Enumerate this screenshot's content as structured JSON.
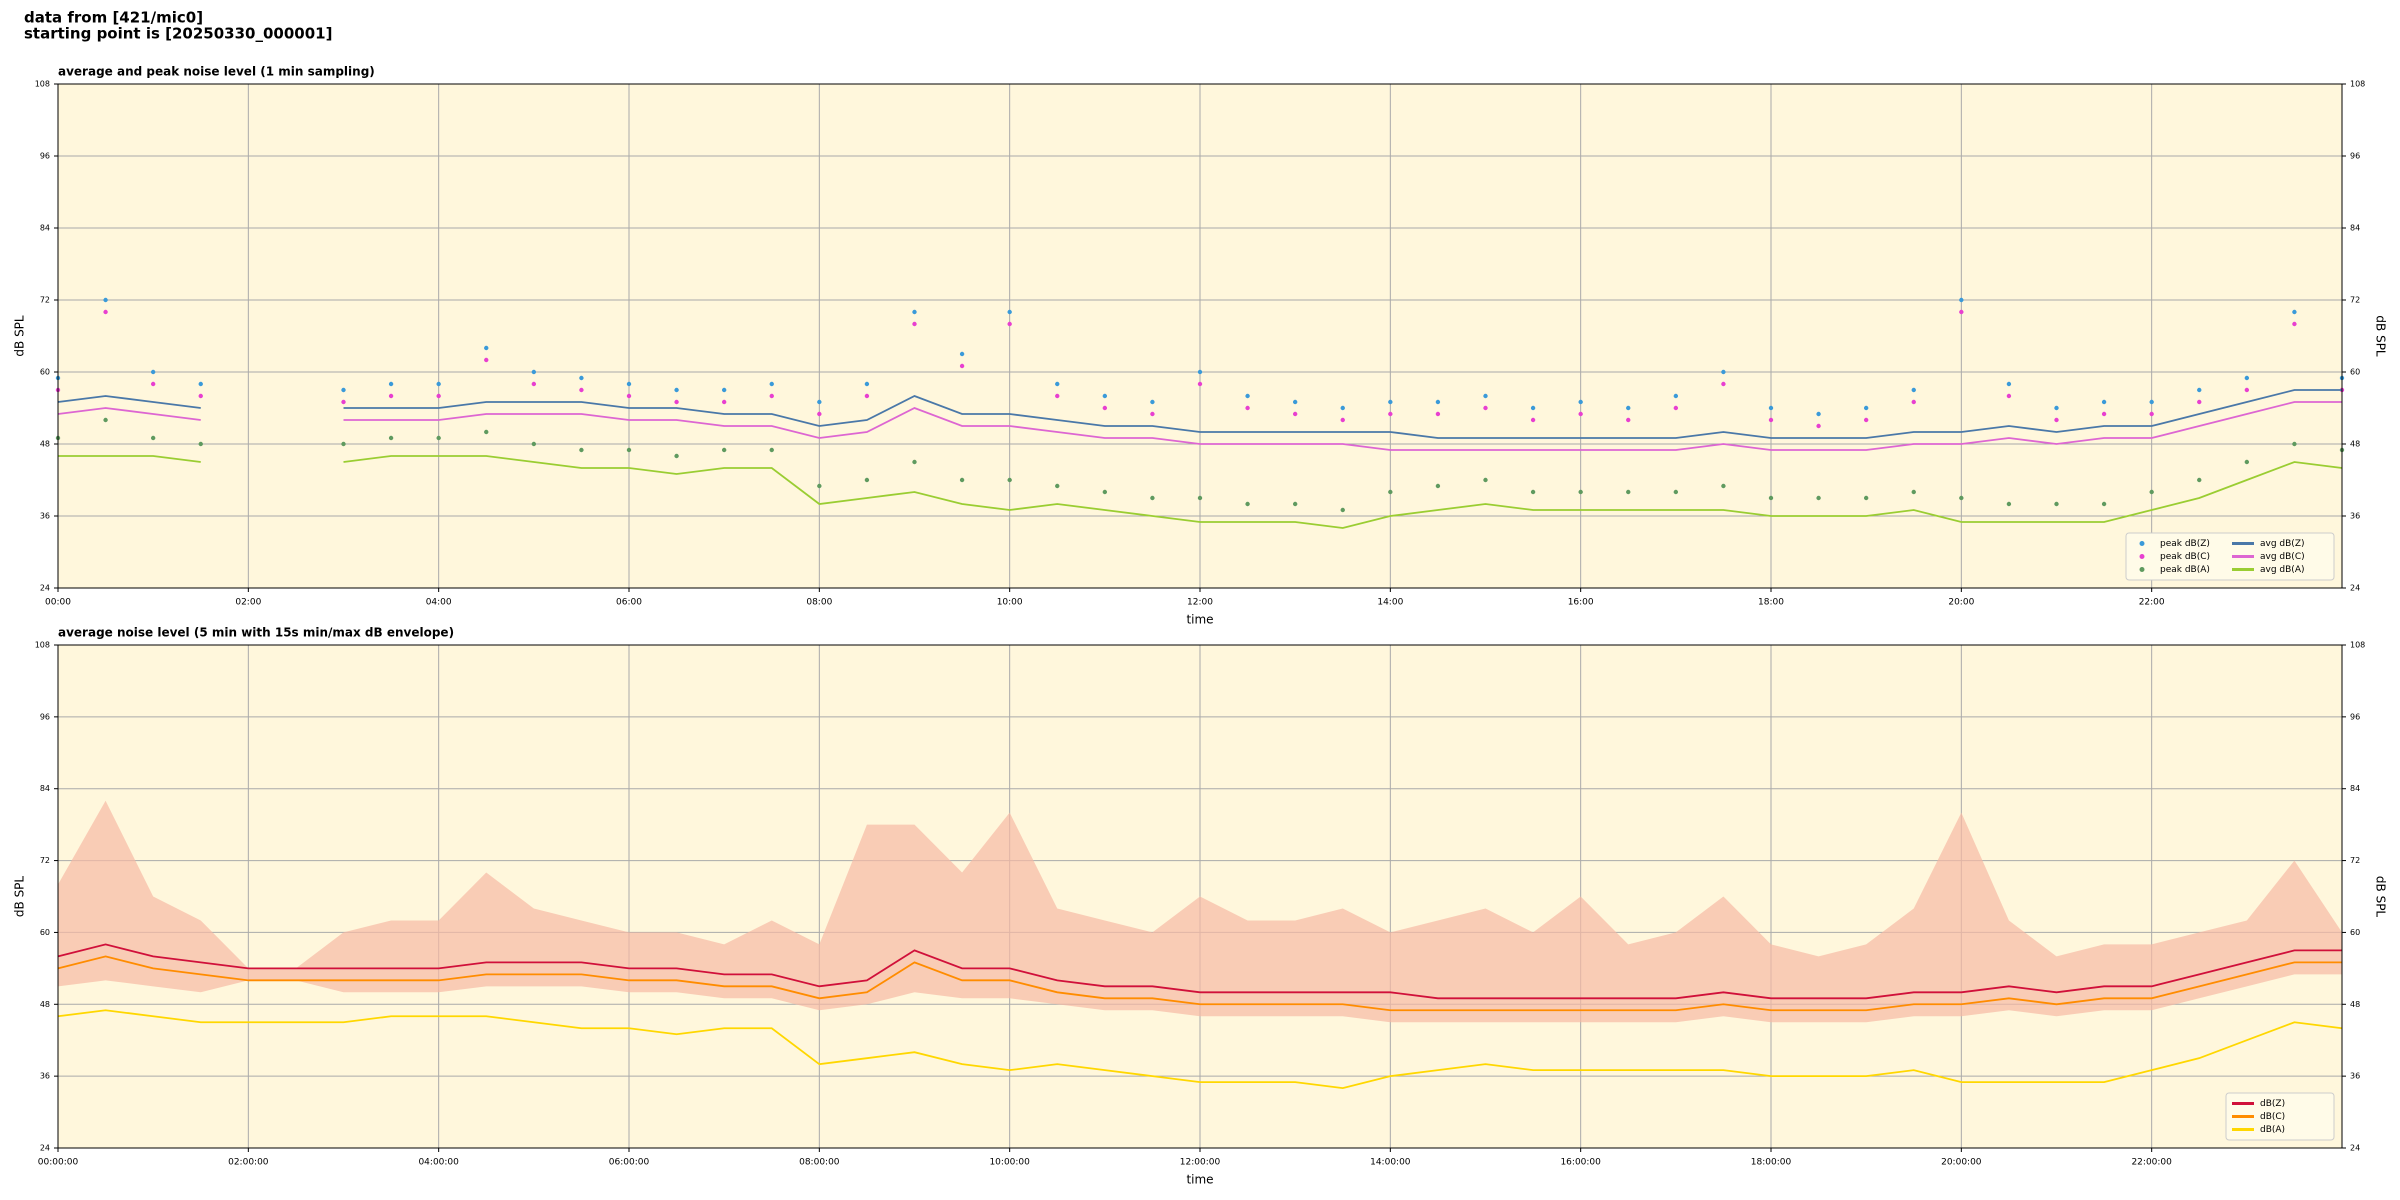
{
  "header": {
    "line1": "data from [421/mic0]",
    "line2": "starting point is [20250330_000001]"
  },
  "chart_data": [
    {
      "type": "line",
      "title": "average and peak noise level (1 min sampling)",
      "xlabel": "time",
      "ylabel": "dB SPL",
      "x": [
        0,
        0.5,
        1,
        1.5,
        2,
        2.5,
        3,
        3.5,
        4,
        4.5,
        5,
        5.5,
        6,
        6.5,
        7,
        7.5,
        8,
        8.5,
        9,
        9.5,
        10,
        10.5,
        11,
        11.5,
        12,
        12.5,
        13,
        13.5,
        14,
        14.5,
        15,
        15.5,
        16,
        16.5,
        17,
        17.5,
        18,
        18.5,
        19,
        19.5,
        20,
        20.5,
        21,
        21.5,
        22,
        22.5,
        23,
        23.5,
        24
      ],
      "xlim": [
        0,
        24
      ],
      "xticks": [
        {
          "value": 0,
          "label": "00:00"
        },
        {
          "value": 2,
          "label": "02:00"
        },
        {
          "value": 4,
          "label": "04:00"
        },
        {
          "value": 6,
          "label": "06:00"
        },
        {
          "value": 8,
          "label": "08:00"
        },
        {
          "value": 10,
          "label": "10:00"
        },
        {
          "value": 12,
          "label": "12:00"
        },
        {
          "value": 14,
          "label": "14:00"
        },
        {
          "value": 16,
          "label": "16:00"
        },
        {
          "value": 18,
          "label": "18:00"
        },
        {
          "value": 20,
          "label": "20:00"
        },
        {
          "value": 22,
          "label": "22:00"
        }
      ],
      "ylim": [
        24,
        108
      ],
      "yticks": [
        24,
        36,
        48,
        60,
        72,
        84,
        96,
        108
      ],
      "grid": true,
      "legend": "lower right",
      "legend_columns": 2,
      "series": [
        {
          "name": "peak dB(Z)",
          "style": "markers",
          "color": "#3a9ad9",
          "values": [
            59,
            72,
            60,
            58,
            null,
            null,
            57,
            58,
            58,
            64,
            60,
            59,
            58,
            57,
            57,
            58,
            55,
            58,
            70,
            63,
            70,
            58,
            56,
            55,
            60,
            56,
            55,
            54,
            55,
            55,
            56,
            54,
            55,
            54,
            56,
            60,
            54,
            53,
            54,
            57,
            72,
            58,
            54,
            55,
            55,
            57,
            59,
            70,
            59
          ]
        },
        {
          "name": "peak dB(C)",
          "style": "markers",
          "color": "#e83fd0",
          "values": [
            57,
            70,
            58,
            56,
            null,
            null,
            55,
            56,
            56,
            62,
            58,
            57,
            56,
            55,
            55,
            56,
            53,
            56,
            68,
            61,
            68,
            56,
            54,
            53,
            58,
            54,
            53,
            52,
            53,
            53,
            54,
            52,
            53,
            52,
            54,
            58,
            52,
            51,
            52,
            55,
            70,
            56,
            52,
            53,
            53,
            55,
            57,
            68,
            57
          ]
        },
        {
          "name": "peak dB(A)",
          "style": "markers",
          "color": "#5f9a5f",
          "values": [
            49,
            52,
            49,
            48,
            null,
            null,
            48,
            49,
            49,
            50,
            48,
            47,
            47,
            46,
            47,
            47,
            41,
            42,
            45,
            42,
            42,
            41,
            40,
            39,
            39,
            38,
            38,
            37,
            40,
            41,
            42,
            40,
            40,
            40,
            40,
            41,
            39,
            39,
            39,
            40,
            39,
            38,
            38,
            38,
            40,
            42,
            45,
            48,
            47
          ]
        },
        {
          "name": "avg dB(Z)",
          "style": "line",
          "color": "#4a78a8",
          "values": [
            55,
            56,
            55,
            54,
            null,
            null,
            54,
            54,
            54,
            55,
            55,
            55,
            54,
            54,
            53,
            53,
            51,
            52,
            56,
            53,
            53,
            52,
            51,
            51,
            50,
            50,
            50,
            50,
            50,
            49,
            49,
            49,
            49,
            49,
            49,
            50,
            49,
            49,
            49,
            50,
            50,
            51,
            50,
            51,
            51,
            53,
            55,
            57,
            57
          ]
        },
        {
          "name": "avg dB(C)",
          "style": "line",
          "color": "#dd66d2",
          "values": [
            53,
            54,
            53,
            52,
            null,
            null,
            52,
            52,
            52,
            53,
            53,
            53,
            52,
            52,
            51,
            51,
            49,
            50,
            54,
            51,
            51,
            50,
            49,
            49,
            48,
            48,
            48,
            48,
            47,
            47,
            47,
            47,
            47,
            47,
            47,
            48,
            47,
            47,
            47,
            48,
            48,
            49,
            48,
            49,
            49,
            51,
            53,
            55,
            55
          ]
        },
        {
          "name": "avg dB(A)",
          "style": "line",
          "color": "#9acd32",
          "values": [
            46,
            46,
            46,
            45,
            null,
            null,
            45,
            46,
            46,
            46,
            45,
            44,
            44,
            43,
            44,
            44,
            38,
            39,
            40,
            38,
            37,
            38,
            37,
            36,
            35,
            35,
            35,
            34,
            36,
            37,
            38,
            37,
            37,
            37,
            37,
            37,
            36,
            36,
            36,
            37,
            35,
            35,
            35,
            35,
            37,
            39,
            42,
            45,
            44
          ]
        }
      ]
    },
    {
      "type": "line",
      "title": "average noise level (5 min with 15s min/max dB envelope)",
      "xlabel": "time",
      "ylabel": "dB SPL",
      "x": [
        0,
        0.5,
        1,
        1.5,
        2,
        2.5,
        3,
        3.5,
        4,
        4.5,
        5,
        5.5,
        6,
        6.5,
        7,
        7.5,
        8,
        8.5,
        9,
        9.5,
        10,
        10.5,
        11,
        11.5,
        12,
        12.5,
        13,
        13.5,
        14,
        14.5,
        15,
        15.5,
        16,
        16.5,
        17,
        17.5,
        18,
        18.5,
        19,
        19.5,
        20,
        20.5,
        21,
        21.5,
        22,
        22.5,
        23,
        23.5,
        24
      ],
      "xlim": [
        0,
        24
      ],
      "xticks": [
        {
          "value": 0,
          "label": "00:00:00"
        },
        {
          "value": 2,
          "label": "02:00:00"
        },
        {
          "value": 4,
          "label": "04:00:00"
        },
        {
          "value": 6,
          "label": "06:00:00"
        },
        {
          "value": 8,
          "label": "08:00:00"
        },
        {
          "value": 10,
          "label": "10:00:00"
        },
        {
          "value": 12,
          "label": "12:00:00"
        },
        {
          "value": 14,
          "label": "14:00:00"
        },
        {
          "value": 16,
          "label": "16:00:00"
        },
        {
          "value": 18,
          "label": "18:00:00"
        },
        {
          "value": 20,
          "label": "20:00:00"
        },
        {
          "value": 22,
          "label": "22:00:00"
        }
      ],
      "ylim": [
        24,
        108
      ],
      "yticks": [
        24,
        36,
        48,
        60,
        72,
        84,
        96,
        108
      ],
      "grid": true,
      "legend": "lower right",
      "legend_columns": 1,
      "envelope": {
        "color": "#f6b9a4",
        "upper": [
          68,
          82,
          66,
          62,
          54,
          54,
          60,
          62,
          62,
          70,
          64,
          62,
          60,
          60,
          58,
          62,
          58,
          78,
          78,
          70,
          80,
          64,
          62,
          60,
          66,
          62,
          62,
          64,
          60,
          62,
          64,
          60,
          66,
          58,
          60,
          66,
          58,
          56,
          58,
          64,
          80,
          62,
          56,
          58,
          58,
          60,
          62,
          72,
          60
        ],
        "lower": [
          51,
          52,
          51,
          50,
          52,
          52,
          50,
          50,
          50,
          51,
          51,
          51,
          50,
          50,
          49,
          49,
          47,
          48,
          50,
          49,
          49,
          48,
          47,
          47,
          46,
          46,
          46,
          46,
          45,
          45,
          45,
          45,
          45,
          45,
          45,
          46,
          45,
          45,
          45,
          46,
          46,
          47,
          46,
          47,
          47,
          49,
          51,
          53,
          53
        ]
      },
      "series": [
        {
          "name": "dB(Z)",
          "style": "line",
          "color": "#d0103a",
          "values": [
            56,
            58,
            56,
            55,
            54,
            54,
            54,
            54,
            54,
            55,
            55,
            55,
            54,
            54,
            53,
            53,
            51,
            52,
            57,
            54,
            54,
            52,
            51,
            51,
            50,
            50,
            50,
            50,
            50,
            49,
            49,
            49,
            49,
            49,
            49,
            50,
            49,
            49,
            49,
            50,
            50,
            51,
            50,
            51,
            51,
            53,
            55,
            57,
            57
          ]
        },
        {
          "name": "dB(C)",
          "style": "line",
          "color": "#ff8c00",
          "values": [
            54,
            56,
            54,
            53,
            52,
            52,
            52,
            52,
            52,
            53,
            53,
            53,
            52,
            52,
            51,
            51,
            49,
            50,
            55,
            52,
            52,
            50,
            49,
            49,
            48,
            48,
            48,
            48,
            47,
            47,
            47,
            47,
            47,
            47,
            47,
            48,
            47,
            47,
            47,
            48,
            48,
            49,
            48,
            49,
            49,
            51,
            53,
            55,
            55
          ]
        },
        {
          "name": "dB(A)",
          "style": "line",
          "color": "#ffd700",
          "values": [
            46,
            47,
            46,
            45,
            45,
            45,
            45,
            46,
            46,
            46,
            45,
            44,
            44,
            43,
            44,
            44,
            38,
            39,
            40,
            38,
            37,
            38,
            37,
            36,
            35,
            35,
            35,
            34,
            36,
            37,
            38,
            37,
            37,
            37,
            37,
            37,
            36,
            36,
            36,
            37,
            35,
            35,
            35,
            35,
            37,
            39,
            42,
            45,
            44
          ]
        }
      ]
    }
  ]
}
